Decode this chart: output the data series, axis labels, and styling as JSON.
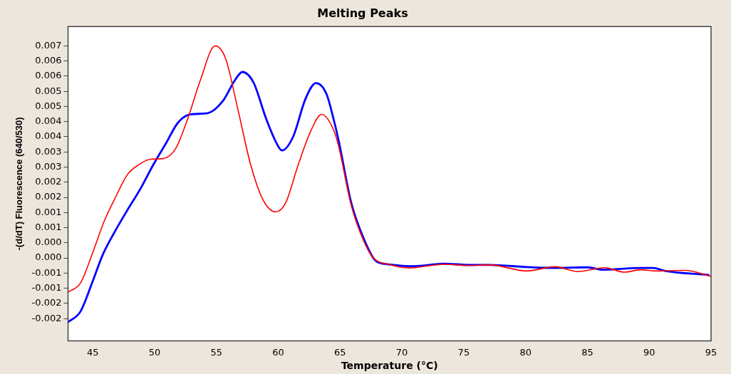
{
  "chart_data": {
    "type": "line",
    "title": "Melting Peaks",
    "xlabel": "Temperature (°C)",
    "ylabel": "-(d/dT) Fluorescence (640/530)",
    "xlim": [
      43,
      95
    ],
    "xticks": [
      45,
      50,
      55,
      60,
      65,
      70,
      75,
      80,
      85,
      90,
      95
    ],
    "ylim": [
      -0.00274,
      0.00764
    ],
    "yticks": [
      {
        "value": 0.007,
        "label": "0.007"
      },
      {
        "value": 0.0065,
        "label": "0.006"
      },
      {
        "value": 0.006,
        "label": "0.006"
      },
      {
        "value": 0.0055,
        "label": "0.005"
      },
      {
        "value": 0.005,
        "label": "0.005"
      },
      {
        "value": 0.0045,
        "label": "0.004"
      },
      {
        "value": 0.004,
        "label": "0.004"
      },
      {
        "value": 0.0035,
        "label": "0.003"
      },
      {
        "value": 0.003,
        "label": "0.003"
      },
      {
        "value": 0.0025,
        "label": "0.002"
      },
      {
        "value": 0.002,
        "label": "0.002"
      },
      {
        "value": 0.0015,
        "label": "0.001"
      },
      {
        "value": 0.001,
        "label": "0.001"
      },
      {
        "value": 0.0005,
        "label": "0.000"
      },
      {
        "value": 0,
        "label": "0.000"
      },
      {
        "value": -0.0005,
        "label": "-0.001"
      },
      {
        "value": -0.001,
        "label": "-0.001"
      },
      {
        "value": -0.0015,
        "label": "-0.002"
      },
      {
        "value": -0.002,
        "label": "-0.002"
      }
    ],
    "grid": false,
    "legend": false,
    "marker": "none",
    "line_style": "solid",
    "series": [
      {
        "color": "#ff0000",
        "x": [
          43,
          44,
          45,
          45.9,
          46.8,
          47.8,
          48.65,
          49.67,
          50.68,
          51.7,
          52.7,
          53.7,
          54.9,
          55.75,
          56.76,
          57.78,
          58.8,
          59.8,
          60.6,
          61.6,
          62.6,
          63.5,
          64.47,
          64.88,
          65.9,
          66.9,
          67.7,
          68.9,
          70.6,
          73.4,
          75.4,
          77.1,
          80.1,
          82.4,
          84.2,
          86.4,
          88,
          89.3,
          90.5,
          92.9,
          95
        ],
        "values": [
          -0.00113,
          -0.00083,
          0.00018,
          0.00119,
          0.00197,
          0.00275,
          0.00306,
          0.00326,
          0.00328,
          0.00361,
          0.00462,
          0.00587,
          0.007,
          0.00657,
          0.00486,
          0.00306,
          0.00189,
          0.00152,
          0.00182,
          0.00306,
          0.00416,
          0.00474,
          0.00423,
          0.00369,
          0.00174,
          0.00057,
          0,
          -0.00021,
          -0.00033,
          -0.00021,
          -0.00025,
          -0.00023,
          -0.00043,
          -0.00029,
          -0.00045,
          -0.00032,
          -0.00047,
          -0.00039,
          -0.00043,
          -0.00041,
          -0.00061
        ]
      },
      {
        "color": "#0000ff",
        "x": [
          43,
          44,
          45,
          45.8,
          46.8,
          47.8,
          48.85,
          49.87,
          50.9,
          51.9,
          52.9,
          54.3,
          55.5,
          56.5,
          57.1,
          58,
          59,
          59.8,
          60.3,
          61.2,
          62.2,
          63.05,
          63.9,
          64.5,
          64.88,
          65.9,
          66.9,
          67.9,
          68.9,
          71,
          73.4,
          75.4,
          77.1,
          80.1,
          82.4,
          85,
          86.2,
          89.3,
          90.3,
          91.3,
          94.8
        ],
        "values": [
          -0.00212,
          -0.00177,
          -0.00076,
          0.0001,
          0.00088,
          0.00158,
          0.00228,
          0.00306,
          0.00377,
          0.00447,
          0.00474,
          0.00478,
          0.00517,
          0.00587,
          0.00614,
          0.00579,
          0.00462,
          0.00384,
          0.00355,
          0.004,
          0.00525,
          0.00577,
          0.00541,
          0.00454,
          0.00388,
          0.00182,
          0.00065,
          -0.0001,
          -0.00021,
          -0.00027,
          -0.00019,
          -0.00023,
          -0.00023,
          -0.0003,
          -0.00033,
          -0.00031,
          -0.00039,
          -0.00033,
          -0.00033,
          -0.00043,
          -0.00056
        ]
      }
    ]
  }
}
